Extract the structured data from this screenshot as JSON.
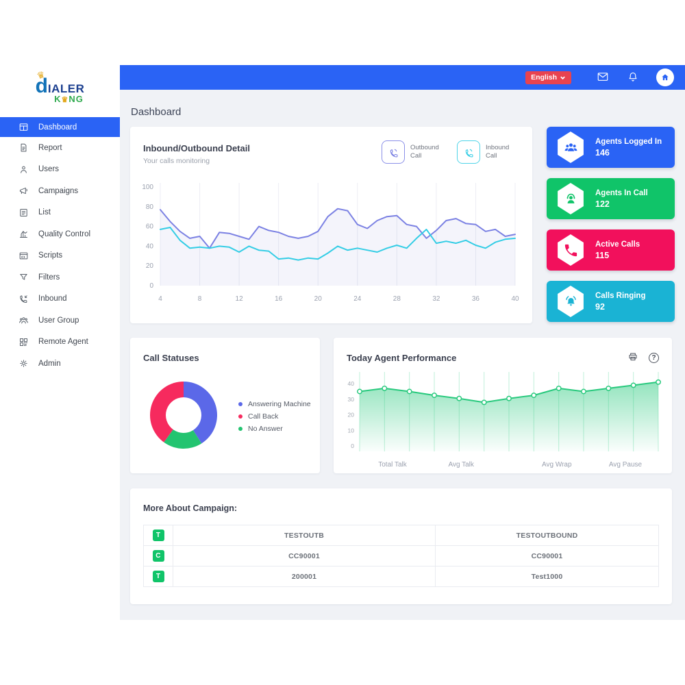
{
  "brand": {
    "mark": "d",
    "name": "IALER",
    "sub_pre": "K",
    "sub_post": "NG"
  },
  "icons": {
    "crown": "♛",
    "help": "?"
  },
  "topbar": {
    "language_label": "English"
  },
  "page": {
    "title": "Dashboard"
  },
  "sidebar": {
    "items": [
      {
        "label": "Dashboard",
        "active": true
      },
      {
        "label": "Report"
      },
      {
        "label": "Users"
      },
      {
        "label": "Campaigns"
      },
      {
        "label": "List"
      },
      {
        "label": "Quality Control"
      },
      {
        "label": "Scripts"
      },
      {
        "label": "Filters"
      },
      {
        "label": "Inbound"
      },
      {
        "label": "User Group"
      },
      {
        "label": "Remote Agent"
      },
      {
        "label": "Admin"
      }
    ]
  },
  "cards": {
    "inbound_outbound": {
      "title": "Inbound/Outbound Detail",
      "subtitle": "Your calls monitoring",
      "legend": [
        {
          "label": "Outbound Call",
          "color": "#7b81e3"
        },
        {
          "label": "Inbound Call",
          "color": "#33cde5"
        }
      ]
    },
    "stats": [
      {
        "label": "Agents Logged In",
        "value": "146",
        "color": "#2a63f5"
      },
      {
        "label": "Agents In Call",
        "value": "122",
        "color": "#10c469"
      },
      {
        "label": "Active Calls",
        "value": "115",
        "color": "#f2105c"
      },
      {
        "label": "Calls Ringing",
        "value": "92",
        "color": "#1ab3d4"
      }
    ],
    "call_statuses": {
      "title": "Call Statuses",
      "legend": [
        {
          "label": "Answering Machine",
          "color": "#5b68e8"
        },
        {
          "label": "Call Back",
          "color": "#f62a5e"
        },
        {
          "label": "No Answer",
          "color": "#23c470"
        }
      ]
    },
    "agent_performance": {
      "title": "Today Agent Performance"
    },
    "campaign": {
      "title": "More About Campaign:",
      "rows": [
        {
          "badge": "T",
          "col1": "TESTOUTB",
          "col2": "TESTOUTBOUND"
        },
        {
          "badge": "C",
          "col1": "CC90001",
          "col2": "CC90001"
        },
        {
          "badge": "T",
          "col1": "200001",
          "col2": "Test1000"
        }
      ]
    }
  },
  "chart_data": [
    {
      "id": "inbound_outbound",
      "type": "line",
      "title": "Inbound/Outbound Detail",
      "x_start": 4,
      "x_end": 40,
      "xticks": [
        4,
        8,
        12,
        16,
        20,
        24,
        28,
        32,
        36,
        40
      ],
      "yticks": [
        0,
        20,
        40,
        60,
        80,
        100
      ],
      "ylim": [
        0,
        100
      ],
      "grid": "vertical",
      "series": [
        {
          "name": "Outbound Call",
          "color": "#7b81e3",
          "values": [
            77,
            65,
            55,
            48,
            50,
            38,
            54,
            53,
            50,
            47,
            60,
            56,
            54,
            50,
            48,
            50,
            55,
            70,
            78,
            76,
            62,
            58,
            66,
            70,
            71,
            62,
            60,
            48,
            56,
            66,
            68,
            63,
            62,
            55,
            57,
            50,
            52
          ]
        },
        {
          "name": "Inbound Call",
          "color": "#33cde5",
          "values": [
            57,
            59,
            46,
            38,
            39,
            38,
            40,
            39,
            34,
            40,
            36,
            35,
            27,
            28,
            26,
            28,
            27,
            33,
            40,
            36,
            38,
            36,
            34,
            38,
            41,
            38,
            48,
            57,
            43,
            45,
            43,
            46,
            41,
            38,
            44,
            47,
            48
          ]
        }
      ]
    },
    {
      "id": "call_statuses",
      "type": "pie",
      "title": "Call Statuses",
      "donut": true,
      "slices": [
        {
          "label": "Answering Machine",
          "value": 41,
          "color": "#5b68e8"
        },
        {
          "label": "No Answer",
          "value": 19,
          "color": "#23c470"
        },
        {
          "label": "Call Back",
          "value": 40,
          "color": "#f62a5e"
        }
      ],
      "legend_position": "right"
    },
    {
      "id": "agent_performance",
      "type": "area",
      "title": "Today Agent Performance",
      "values": [
        35,
        37,
        35,
        32.5,
        30.5,
        28,
        30.5,
        32.5,
        37,
        35,
        37,
        39,
        41
      ],
      "yticks": [
        0,
        10,
        20,
        30,
        40
      ],
      "ylim": [
        0,
        44
      ],
      "categories": [
        "Total Talk",
        "Avg Talk",
        "Avg Wrap",
        "Avg Pause"
      ],
      "category_positions": [
        0.11,
        0.34,
        0.66,
        0.89
      ],
      "color": "#28c97d",
      "grid": "vertical"
    }
  ]
}
